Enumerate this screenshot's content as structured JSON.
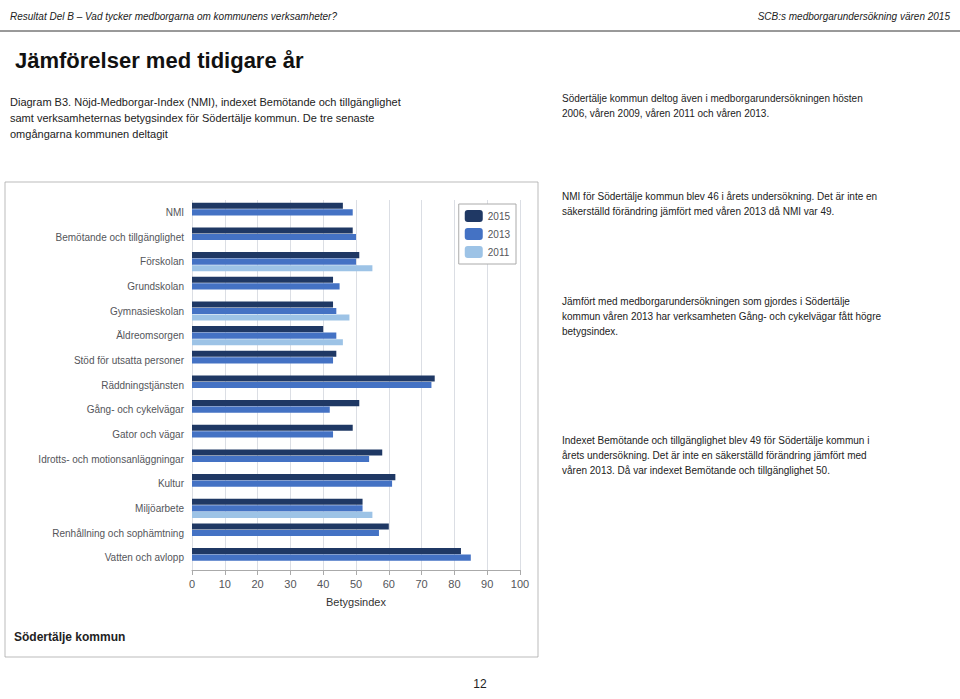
{
  "chart_data": {
    "type": "bar",
    "orientation": "horizontal",
    "title": "Jämförelser med tidigare år",
    "subtitle": "Diagram B3. Nöjd-Medborgar-Index (NMI), indexet Bemötande och tillgänglighet\nsamt verksamheternas betygsindex för Södertälje kommun. De tre senaste\nomgångarna kommunen deltagit",
    "xlabel": "Betygsindex",
    "categories": [
      "NMI",
      "Bemötande och tillgänglighet",
      "Förskolan",
      "Grundskolan",
      "Gymnasieskolan",
      "Äldreomsorgen",
      "Stöd för utsatta personer",
      "Räddningstjänsten",
      "Gång- och cykelvägar",
      "Gator och vägar",
      "Idrotts- och motionsanläggningar",
      "Kultur",
      "Miljöarbete",
      "Renhållning och sophämtning",
      "Vatten och avlopp"
    ],
    "series": [
      {
        "name": "2015",
        "color": "#1F3864",
        "values": [
          46,
          49,
          51,
          43,
          43,
          40,
          44,
          74,
          51,
          49,
          58,
          62,
          52,
          60,
          82
        ]
      },
      {
        "name": "2013",
        "color": "#4472C4",
        "values": [
          49,
          50,
          50,
          45,
          44,
          44,
          43,
          73,
          42,
          43,
          54,
          61,
          52,
          57,
          85
        ]
      },
      {
        "name": "2011",
        "color": "#9DC3E6",
        "values": [
          null,
          null,
          55,
          null,
          48,
          46,
          null,
          null,
          null,
          null,
          null,
          null,
          55,
          null,
          null
        ]
      }
    ],
    "xlim": [
      0,
      100
    ],
    "xticks": [
      0,
      10,
      20,
      30,
      40,
      50,
      60,
      70,
      80,
      90,
      100
    ],
    "grid": true,
    "legend": "upper right",
    "annotations": [
      "Resultat Del B – Vad tycker medborgarna om kommunens verksamheter?",
      "SCB:s medborgarundersökning vären 2015",
      "Södertälje kommun",
      "Södertälje kommun deltog även i medborgarundersökningen hösten\n2006, våren 2009, våren 2011 och våren 2013.",
      "NMI för Södertälje kommun blev 46 i årets undersökning. Det är inte en\nsäkerställd förändring jämfört med våren 2013 då NMI var 49.",
      "Jämfört med medborgarundersökningen som gjordes i Södertälje\nkommun våren 2013 har verksamheten Gång- och cykelvägar fått högre\nbetygsindex.",
      "Indexet Bemötande och tillgänglighet blev 49 för Södertälje kommun i\nårets undersökning. Det är inte en säkerställd förändring jämfört med\nvåren 2013. Då var indexet Bemötande och tillgänglighet 50.",
      "12"
    ]
  }
}
